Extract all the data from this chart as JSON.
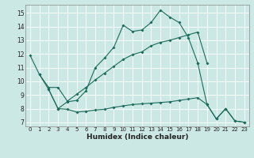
{
  "xlabel": "Humidex (Indice chaleur)",
  "background_color": "#cce8e4",
  "grid_color": "#ffffff",
  "line_color": "#1a6b5a",
  "xlim": [
    -0.5,
    23.5
  ],
  "ylim": [
    6.7,
    15.6
  ],
  "yticks": [
    7,
    8,
    9,
    10,
    11,
    12,
    13,
    14,
    15
  ],
  "xticks": [
    0,
    1,
    2,
    3,
    4,
    5,
    6,
    7,
    8,
    9,
    10,
    11,
    12,
    13,
    14,
    15,
    16,
    17,
    18,
    19,
    20,
    21,
    22,
    23
  ],
  "line1_x": [
    0,
    1,
    2,
    3,
    4,
    5,
    6,
    7,
    8,
    9,
    10,
    11,
    12,
    13,
    14,
    15,
    16,
    17,
    18
  ],
  "line1_y": [
    11.9,
    10.5,
    9.4,
    8.0,
    8.5,
    8.6,
    9.3,
    11.0,
    11.7,
    12.5,
    14.1,
    13.65,
    13.75,
    14.3,
    15.2,
    14.7,
    14.3,
    13.2,
    11.35
  ],
  "line2_x": [
    18,
    19,
    20,
    21,
    22,
    23
  ],
  "line2_y": [
    11.35,
    8.3,
    7.25,
    8.0,
    7.1,
    7.0
  ],
  "line3_x": [
    1,
    2,
    3,
    4,
    5,
    6,
    7,
    8,
    9,
    10,
    11,
    12,
    13,
    14,
    15,
    16,
    17,
    18,
    19
  ],
  "line3_y": [
    10.5,
    9.55,
    9.55,
    8.55,
    9.05,
    9.55,
    10.1,
    10.6,
    11.1,
    11.6,
    11.95,
    12.15,
    12.6,
    12.85,
    13.0,
    13.2,
    13.4,
    13.6,
    11.35
  ],
  "line4_x": [
    2,
    3,
    4,
    5,
    6,
    7,
    8,
    9,
    10,
    11,
    12,
    13,
    14,
    15,
    16,
    17,
    18,
    19,
    20,
    21,
    22,
    23
  ],
  "line4_y": [
    9.4,
    8.0,
    7.95,
    7.75,
    7.8,
    7.9,
    7.95,
    8.1,
    8.2,
    8.3,
    8.35,
    8.4,
    8.45,
    8.5,
    8.6,
    8.7,
    8.8,
    8.3,
    7.25,
    8.0,
    7.1,
    7.0
  ]
}
